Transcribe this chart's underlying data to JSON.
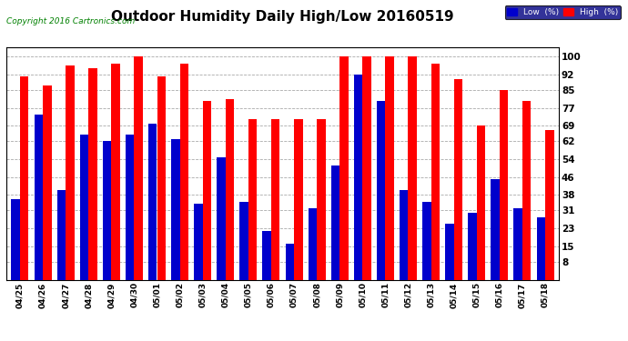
{
  "title": "Outdoor Humidity Daily High/Low 20160519",
  "copyright": "Copyright 2016 Cartronics.com",
  "categories": [
    "04/25",
    "04/26",
    "04/27",
    "04/28",
    "04/29",
    "04/30",
    "05/01",
    "05/02",
    "05/03",
    "05/04",
    "05/05",
    "05/06",
    "05/07",
    "05/08",
    "05/09",
    "05/10",
    "05/11",
    "05/12",
    "05/13",
    "05/14",
    "05/15",
    "05/16",
    "05/17",
    "05/18"
  ],
  "high_values": [
    91,
    87,
    96,
    95,
    97,
    100,
    91,
    97,
    80,
    81,
    72,
    72,
    72,
    72,
    100,
    100,
    100,
    100,
    97,
    90,
    69,
    85,
    80,
    67
  ],
  "low_values": [
    36,
    74,
    40,
    65,
    62,
    65,
    70,
    63,
    34,
    55,
    35,
    22,
    16,
    32,
    51,
    92,
    80,
    40,
    35,
    25,
    30,
    45,
    32,
    28
  ],
  "high_color": "#ff0000",
  "low_color": "#0000cc",
  "background_color": "#ffffff",
  "plot_bg_color": "#ffffff",
  "grid_color": "#aaaaaa",
  "title_fontsize": 11,
  "yticks": [
    8,
    15,
    23,
    31,
    38,
    46,
    54,
    62,
    69,
    77,
    85,
    92,
    100
  ],
  "ylim": [
    0,
    104
  ],
  "bar_width": 0.38,
  "legend_labels": [
    "Low  (%)",
    "High  (%)"
  ],
  "legend_colors": [
    "#0000cc",
    "#ff0000"
  ]
}
